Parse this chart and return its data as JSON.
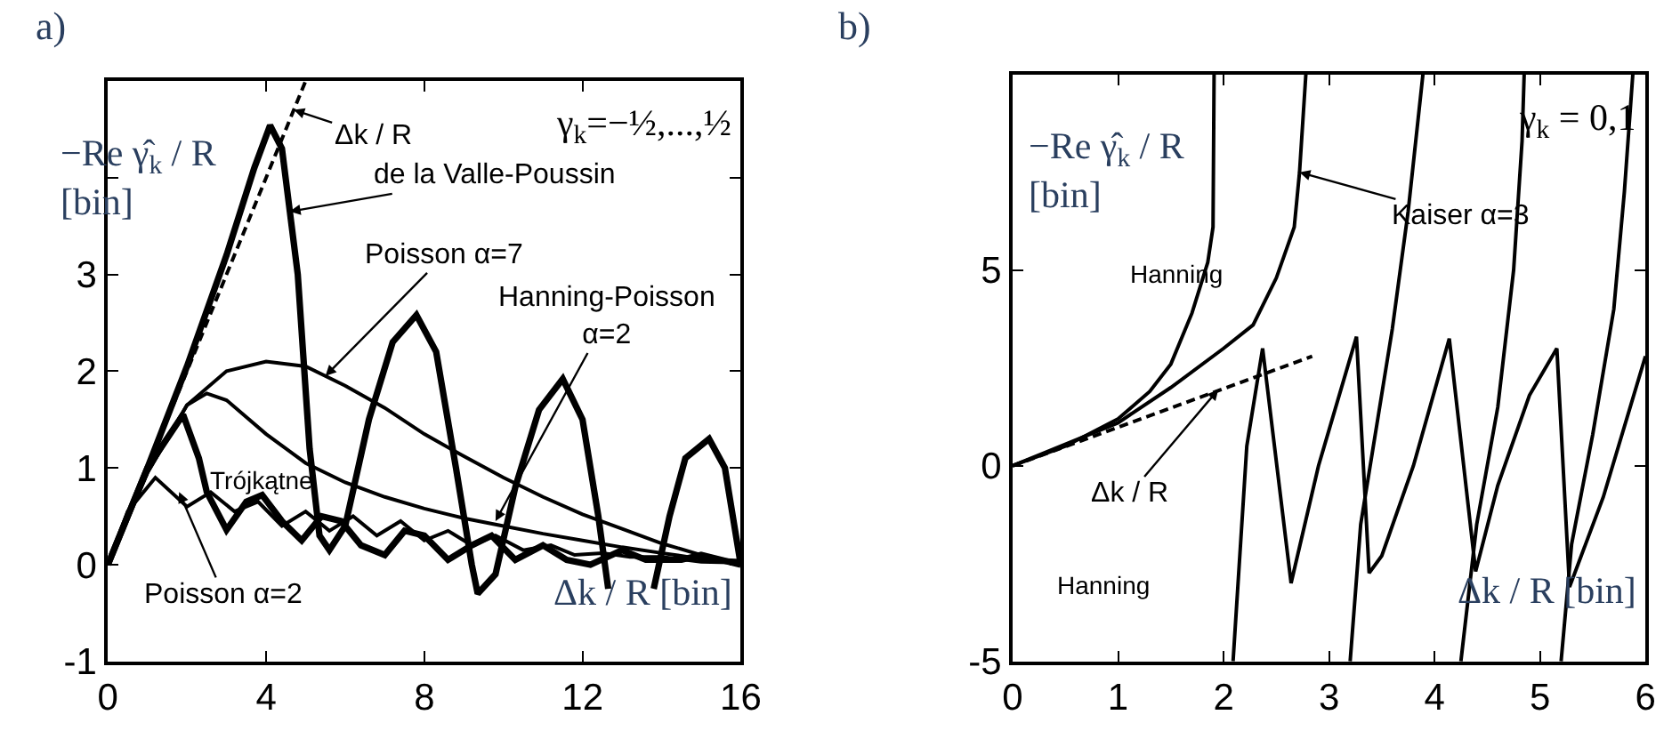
{
  "chart_data": [
    {
      "type": "line",
      "title": "a)",
      "xlabel": "Δk / R [bin]",
      "ylabel": "−Re γ̂$_{k}$ / R\n[bin]",
      "xlim": [
        0,
        16
      ],
      "ylim": [
        -1,
        5
      ],
      "xticks": [
        0,
        4,
        8,
        12,
        16
      ],
      "yticks": [
        -1,
        0,
        1,
        2,
        3,
        {
          "value": 4,
          "label": null
        }
      ],
      "series": [
        {
          "color": "#000000",
          "x": [
            0,
            1,
            2,
            3,
            3.7,
            4.1,
            4.4,
            4.6,
            4.8,
            5.1,
            5.35,
            5.6,
            6.0,
            6.6,
            7.2,
            7.8,
            8.3,
            8.8,
            9.2,
            9.35,
            9.8,
            10.3,
            10.9,
            11.5,
            12.0,
            12.4,
            12.65,
            13.2,
            13.8,
            14.2,
            14.6,
            15.2,
            15.6,
            16
          ],
          "values": [
            0,
            1.0,
            2.05,
            3.2,
            4.1,
            4.54,
            4.3,
            3.65,
            3.0,
            1.2,
            0.3,
            0.15,
            0.4,
            1.5,
            2.3,
            2.58,
            2.2,
            1.0,
            0.0,
            -0.3,
            -0.1,
            0.8,
            1.6,
            1.92,
            1.5,
            0.5,
            -0.25,
            null,
            -0.25,
            0.5,
            1.1,
            1.3,
            1.0,
            0
          ]
        },
        {
          "color": "#000000",
          "line_style": "dashed",
          "x": [
            0,
            5
          ],
          "values": [
            0,
            5
          ]
        },
        {
          "color": "#000000",
          "x": [
            0,
            1,
            2,
            3,
            4,
            5,
            6,
            7,
            8,
            9,
            10,
            11,
            12,
            13,
            14,
            15,
            16
          ],
          "values": [
            0,
            0.95,
            1.65,
            2.0,
            2.1,
            2.05,
            1.85,
            1.62,
            1.35,
            1.12,
            0.9,
            0.7,
            0.52,
            0.37,
            0.22,
            0.1,
            0.0
          ]
        },
        {
          "color": "#000000",
          "x": [
            0,
            1,
            2,
            2.5,
            3,
            4,
            5,
            6,
            7,
            8,
            9,
            10,
            11,
            12,
            13,
            14,
            15,
            16
          ],
          "values": [
            0,
            0.95,
            1.65,
            1.77,
            1.7,
            1.35,
            1.05,
            0.85,
            0.7,
            0.58,
            0.48,
            0.4,
            0.32,
            0.25,
            0.18,
            0.12,
            0.06,
            0.04
          ]
        },
        {
          "color": "#000000",
          "x": [
            0,
            1,
            1.9,
            2.3,
            2.5,
            3.0,
            3.5,
            3.9,
            4.4,
            4.9,
            5.4,
            5.9,
            6.4,
            7.0,
            7.5,
            8.0,
            8.6,
            9.2,
            9.7,
            10.3,
            11.0,
            11.6,
            12.2,
            13.0,
            13.6,
            14.5,
            15,
            16
          ],
          "values": [
            0,
            1.0,
            1.55,
            1.1,
            0.75,
            0.36,
            0.65,
            0.72,
            0.45,
            0.25,
            0.5,
            0.45,
            0.2,
            0.1,
            0.35,
            0.3,
            0.05,
            0.2,
            0.3,
            0.05,
            0.2,
            0.05,
            0.0,
            0.15,
            0.05,
            0.05,
            0.1,
            0
          ]
        },
        {
          "color": "#000000",
          "x": [
            0,
            0.5,
            1.2,
            2.0,
            2.6,
            3.2,
            3.8,
            4.4,
            5.0,
            5.6,
            6.2,
            6.8,
            7.4,
            8.0,
            8.6,
            9.2,
            9.8,
            10.5,
            11.2,
            11.8,
            12.5,
            13.2,
            14,
            15,
            16
          ],
          "values": [
            0,
            0.55,
            0.9,
            0.6,
            0.75,
            0.55,
            0.65,
            0.4,
            0.55,
            0.35,
            0.5,
            0.3,
            0.45,
            0.25,
            0.35,
            0.2,
            0.3,
            0.15,
            0.2,
            0.1,
            0.12,
            0.08,
            0.08,
            0.03,
            0.02
          ]
        }
      ],
      "annotations": [
        {
          "text": "Δk / R",
          "x": 4.7,
          "y": 4.7
        },
        {
          "text": "de la Valle-Poussin",
          "x": 4.6,
          "y": 3.65
        },
        {
          "text": "Poisson α=7",
          "x": 5.5,
          "y": 1.95
        },
        {
          "text": "Hanning-Poisson\nα=2",
          "x": 9.8,
          "y": 0.45
        },
        "Trójkątne",
        {
          "text": "Poisson α=2",
          "x": 1.8,
          "y": 0.75
        },
        "γ$_{k}$=−½,...,½"
      ]
    },
    {
      "type": "line",
      "title": "b)",
      "xlabel": "Δk / R [bin]",
      "ylabel": "−Re γ̂$_{k}$ / R\n[bin]",
      "xlim": [
        0,
        6
      ],
      "ylim": [
        -5,
        10
      ],
      "xticks": [
        0,
        1,
        2,
        3,
        4,
        5,
        6
      ],
      "yticks": [
        -5,
        0,
        5
      ],
      "series": [
        {
          "color": "#000000",
          "x": [
            0,
            0.5,
            1,
            1.3,
            1.5,
            1.7,
            1.85,
            1.9,
            1.91
          ],
          "values": [
            0,
            0.5,
            1.2,
            1.9,
            2.6,
            3.9,
            5.2,
            6.1,
            10
          ]
        },
        {
          "color": "#000000",
          "x": [
            0,
            1,
            1.5,
            2.0,
            2.28,
            2.5,
            2.67,
            2.72,
            2.78
          ],
          "values": [
            0,
            1.1,
            2.0,
            3.0,
            3.6,
            4.8,
            6.1,
            7.5,
            10
          ]
        },
        {
          "color": "#000000",
          "line_style": "dashed",
          "x": [
            0,
            2.84
          ],
          "values": [
            0,
            2.8
          ]
        },
        {
          "color": "#000000",
          "x": [
            2.09,
            2.22,
            2.37,
            2.64,
            2.9,
            3.26,
            3.38,
            3.5,
            3.8,
            4.14,
            4.39,
            4.6,
            4.9,
            5.16,
            5.28,
            5.6,
            6.0
          ],
          "values": [
            -5,
            0.5,
            3.0,
            -3.0,
            0,
            3.3,
            -2.74,
            -2.3,
            0,
            3.25,
            -2.7,
            -0.5,
            1.8,
            3.0,
            -3.1,
            -0.8,
            2.8
          ]
        },
        {
          "color": "#000000",
          "x": [
            3.2,
            3.3,
            3.45,
            3.6,
            3.75,
            3.89
          ],
          "values": [
            -5,
            -1.5,
            1,
            3.5,
            6.5,
            10
          ]
        },
        {
          "color": "#000000",
          "x": [
            4.25,
            4.4,
            4.6,
            4.75,
            4.83,
            4.85
          ],
          "values": [
            -5,
            -1.5,
            1.5,
            5,
            8.3,
            10
          ]
        },
        {
          "color": "#000000",
          "x": [
            5.2,
            5.3,
            5.5,
            5.7,
            5.8,
            5.88
          ],
          "values": [
            -5,
            -2,
            0.8,
            4,
            7,
            10
          ]
        }
      ],
      "annotations": [
        "Hanning",
        {
          "text": "Kaiser α=3",
          "x": 2.72,
          "y": 7.5
        },
        {
          "text": "Δk / R",
          "x": 1.95,
          "y": 1.95
        },
        "Hanning",
        "γ$_{k}$ = 0,1"
      ]
    }
  ]
}
